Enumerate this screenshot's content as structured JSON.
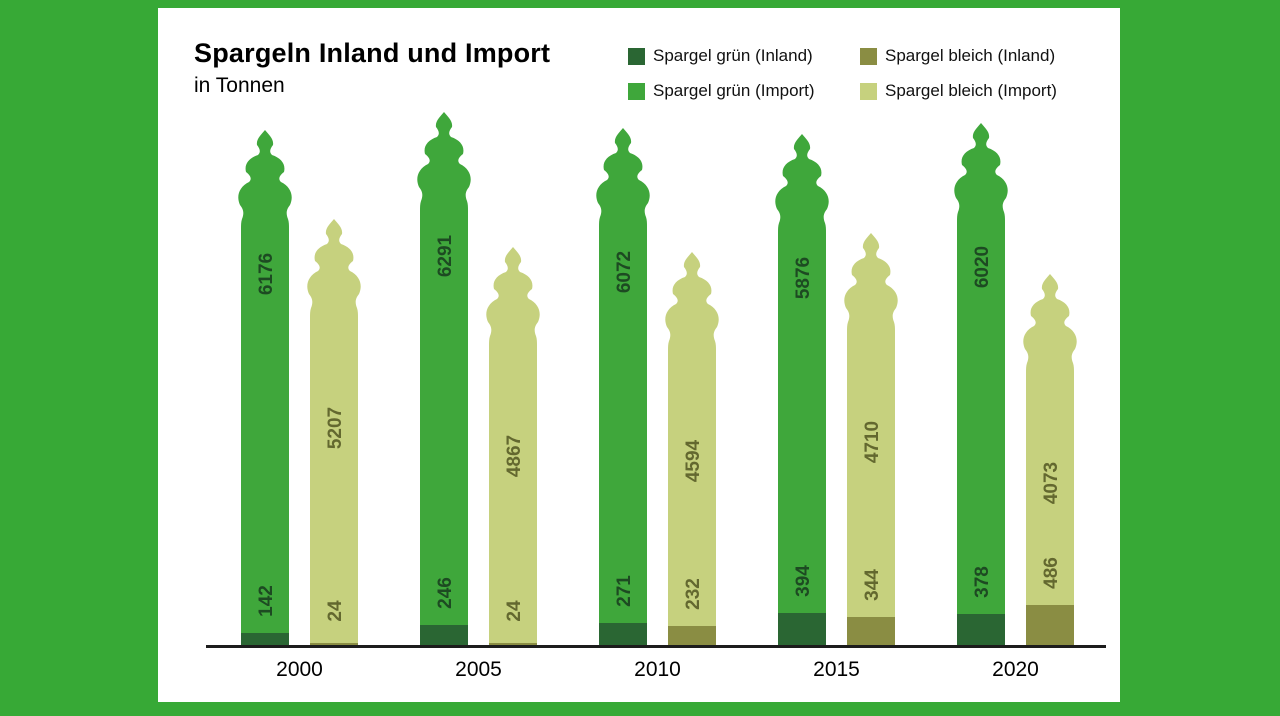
{
  "title": "Spargeln Inland und Import",
  "subtitle": "in Tonnen",
  "legend": [
    {
      "label": "Spargel grün (Inland)",
      "color": "#2a6633"
    },
    {
      "label": "Spargel grün (Import)",
      "color": "#3fa73b"
    },
    {
      "label": "Spargel bleich (Inland)",
      "color": "#8a8d43"
    },
    {
      "label": "Spargel bleich (Import)",
      "color": "#c6d17e"
    }
  ],
  "frame_color": "#37a936",
  "chart_data": {
    "type": "bar",
    "variant": "stacked asparagus pictogram, pairs per year",
    "title": "Spargeln Inland und Import",
    "ylabel": "Tonnen",
    "categories": [
      "2000",
      "2005",
      "2010",
      "2015",
      "2020"
    ],
    "series": [
      {
        "name": "Spargel grün (Inland)",
        "stack": "gruen",
        "role": "inland",
        "color": "#2a6633",
        "values": [
          142,
          246,
          271,
          394,
          378
        ]
      },
      {
        "name": "Spargel grün (Import)",
        "stack": "gruen",
        "role": "import",
        "color": "#3fa73b",
        "values": [
          6176,
          6291,
          6072,
          5876,
          6020
        ]
      },
      {
        "name": "Spargel bleich (Inland)",
        "stack": "bleich",
        "role": "inland",
        "color": "#8a8d43",
        "values": [
          24,
          24,
          232,
          344,
          486
        ]
      },
      {
        "name": "Spargel bleich (Import)",
        "stack": "bleich",
        "role": "import",
        "color": "#c6d17e",
        "values": [
          5207,
          4867,
          4594,
          4710,
          4073
        ]
      }
    ],
    "value_label_colors": {
      "gruen": "#1d4a22",
      "bleich": "#63682f"
    },
    "ylim": [
      0,
      6550
    ],
    "grid": false,
    "legend_position": "top-right",
    "stacking": "Inland segment at bottom, Import segment on top"
  }
}
